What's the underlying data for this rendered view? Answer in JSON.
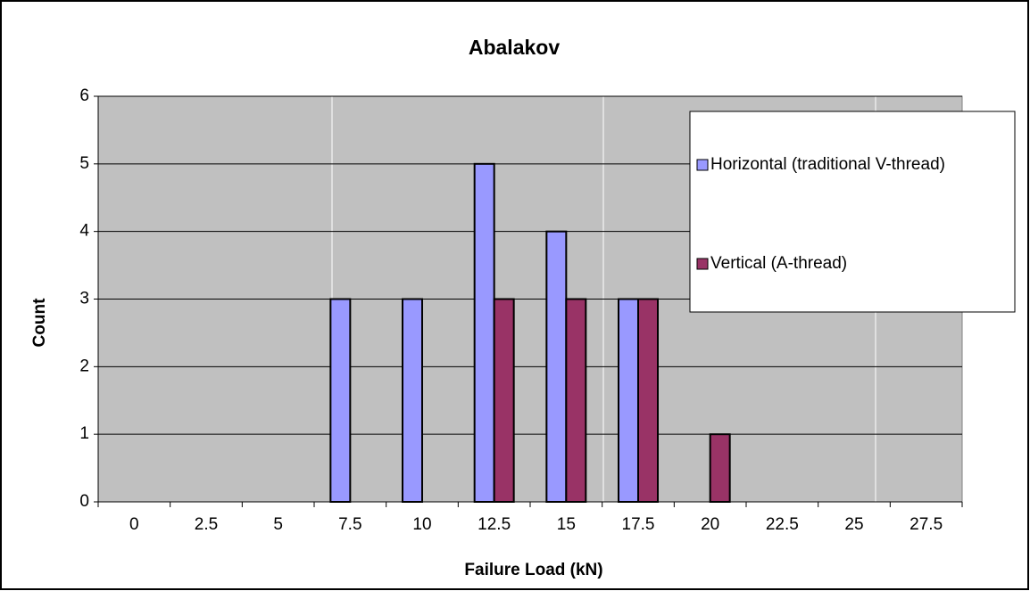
{
  "chart_data": {
    "type": "bar",
    "title": "Abalakov",
    "x_label": "Failure Load (kN)",
    "y_label": "Count",
    "categories": [
      "0",
      "2.5",
      "5",
      "7.5",
      "10",
      "12.5",
      "15",
      "17.5",
      "20",
      "22.5",
      "25",
      "27.5"
    ],
    "series": [
      {
        "name": "Horizontal (traditional V-thread)",
        "color": "#9999ff",
        "values": [
          0,
          0,
          0,
          3,
          3,
          5,
          4,
          3,
          0,
          0,
          0,
          0
        ]
      },
      {
        "name": "Vertical (A-thread)",
        "color": "#993366",
        "values": [
          0,
          0,
          0,
          0,
          0,
          3,
          3,
          3,
          1,
          0,
          0,
          0
        ]
      }
    ],
    "ylim": [
      0,
      6
    ],
    "yticks": [
      0,
      1,
      2,
      3,
      4,
      5,
      6
    ],
    "grid": true,
    "legend": "right"
  }
}
